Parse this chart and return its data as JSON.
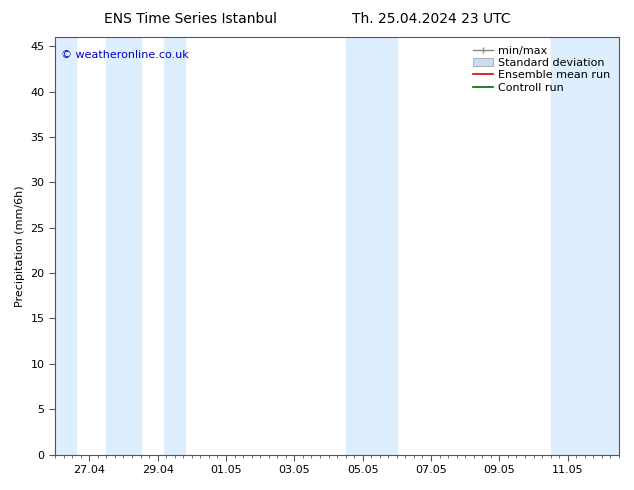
{
  "title_left": "ENS Time Series Istanbul",
  "title_right": "Th. 25.04.2024 23 UTC",
  "ylabel": "Precipitation (mm/6h)",
  "ylabel_fontsize": 8,
  "title_fontsize": 10,
  "background_color": "#ffffff",
  "plot_bg_color": "#ffffff",
  "ymin": 0,
  "ymax": 46,
  "yticks": [
    0,
    5,
    10,
    15,
    20,
    25,
    30,
    35,
    40,
    45
  ],
  "xlim_left": 0.0,
  "xlim_right": 16.5,
  "x_tick_labels": [
    "27.04",
    "29.04",
    "01.05",
    "03.05",
    "05.05",
    "07.05",
    "09.05",
    "11.05"
  ],
  "x_tick_positions": [
    1.0,
    3.0,
    5.0,
    7.0,
    9.0,
    11.0,
    13.0,
    15.0
  ],
  "shade_bands": [
    {
      "x_start": 0.0,
      "x_end": 0.6,
      "color": "#ddeeff"
    },
    {
      "x_start": 1.5,
      "x_end": 2.5,
      "color": "#ddeeff"
    },
    {
      "x_start": 3.2,
      "x_end": 3.8,
      "color": "#ddeeff"
    },
    {
      "x_start": 8.5,
      "x_end": 10.0,
      "color": "#ddeeff"
    },
    {
      "x_start": 14.5,
      "x_end": 16.5,
      "color": "#ddeeff"
    }
  ],
  "legend_labels": [
    "min/max",
    "Standard deviation",
    "Ensemble mean run",
    "Controll run"
  ],
  "legend_colors_line": [
    "#999999",
    "#c8ddf0",
    "#ff0000",
    "#008000"
  ],
  "watermark_text": "© weatheronline.co.uk",
  "watermark_color": "#0000cc",
  "watermark_fontsize": 8,
  "axis_tick_fontsize": 8,
  "legend_fontsize": 8,
  "spine_color": "#555555"
}
